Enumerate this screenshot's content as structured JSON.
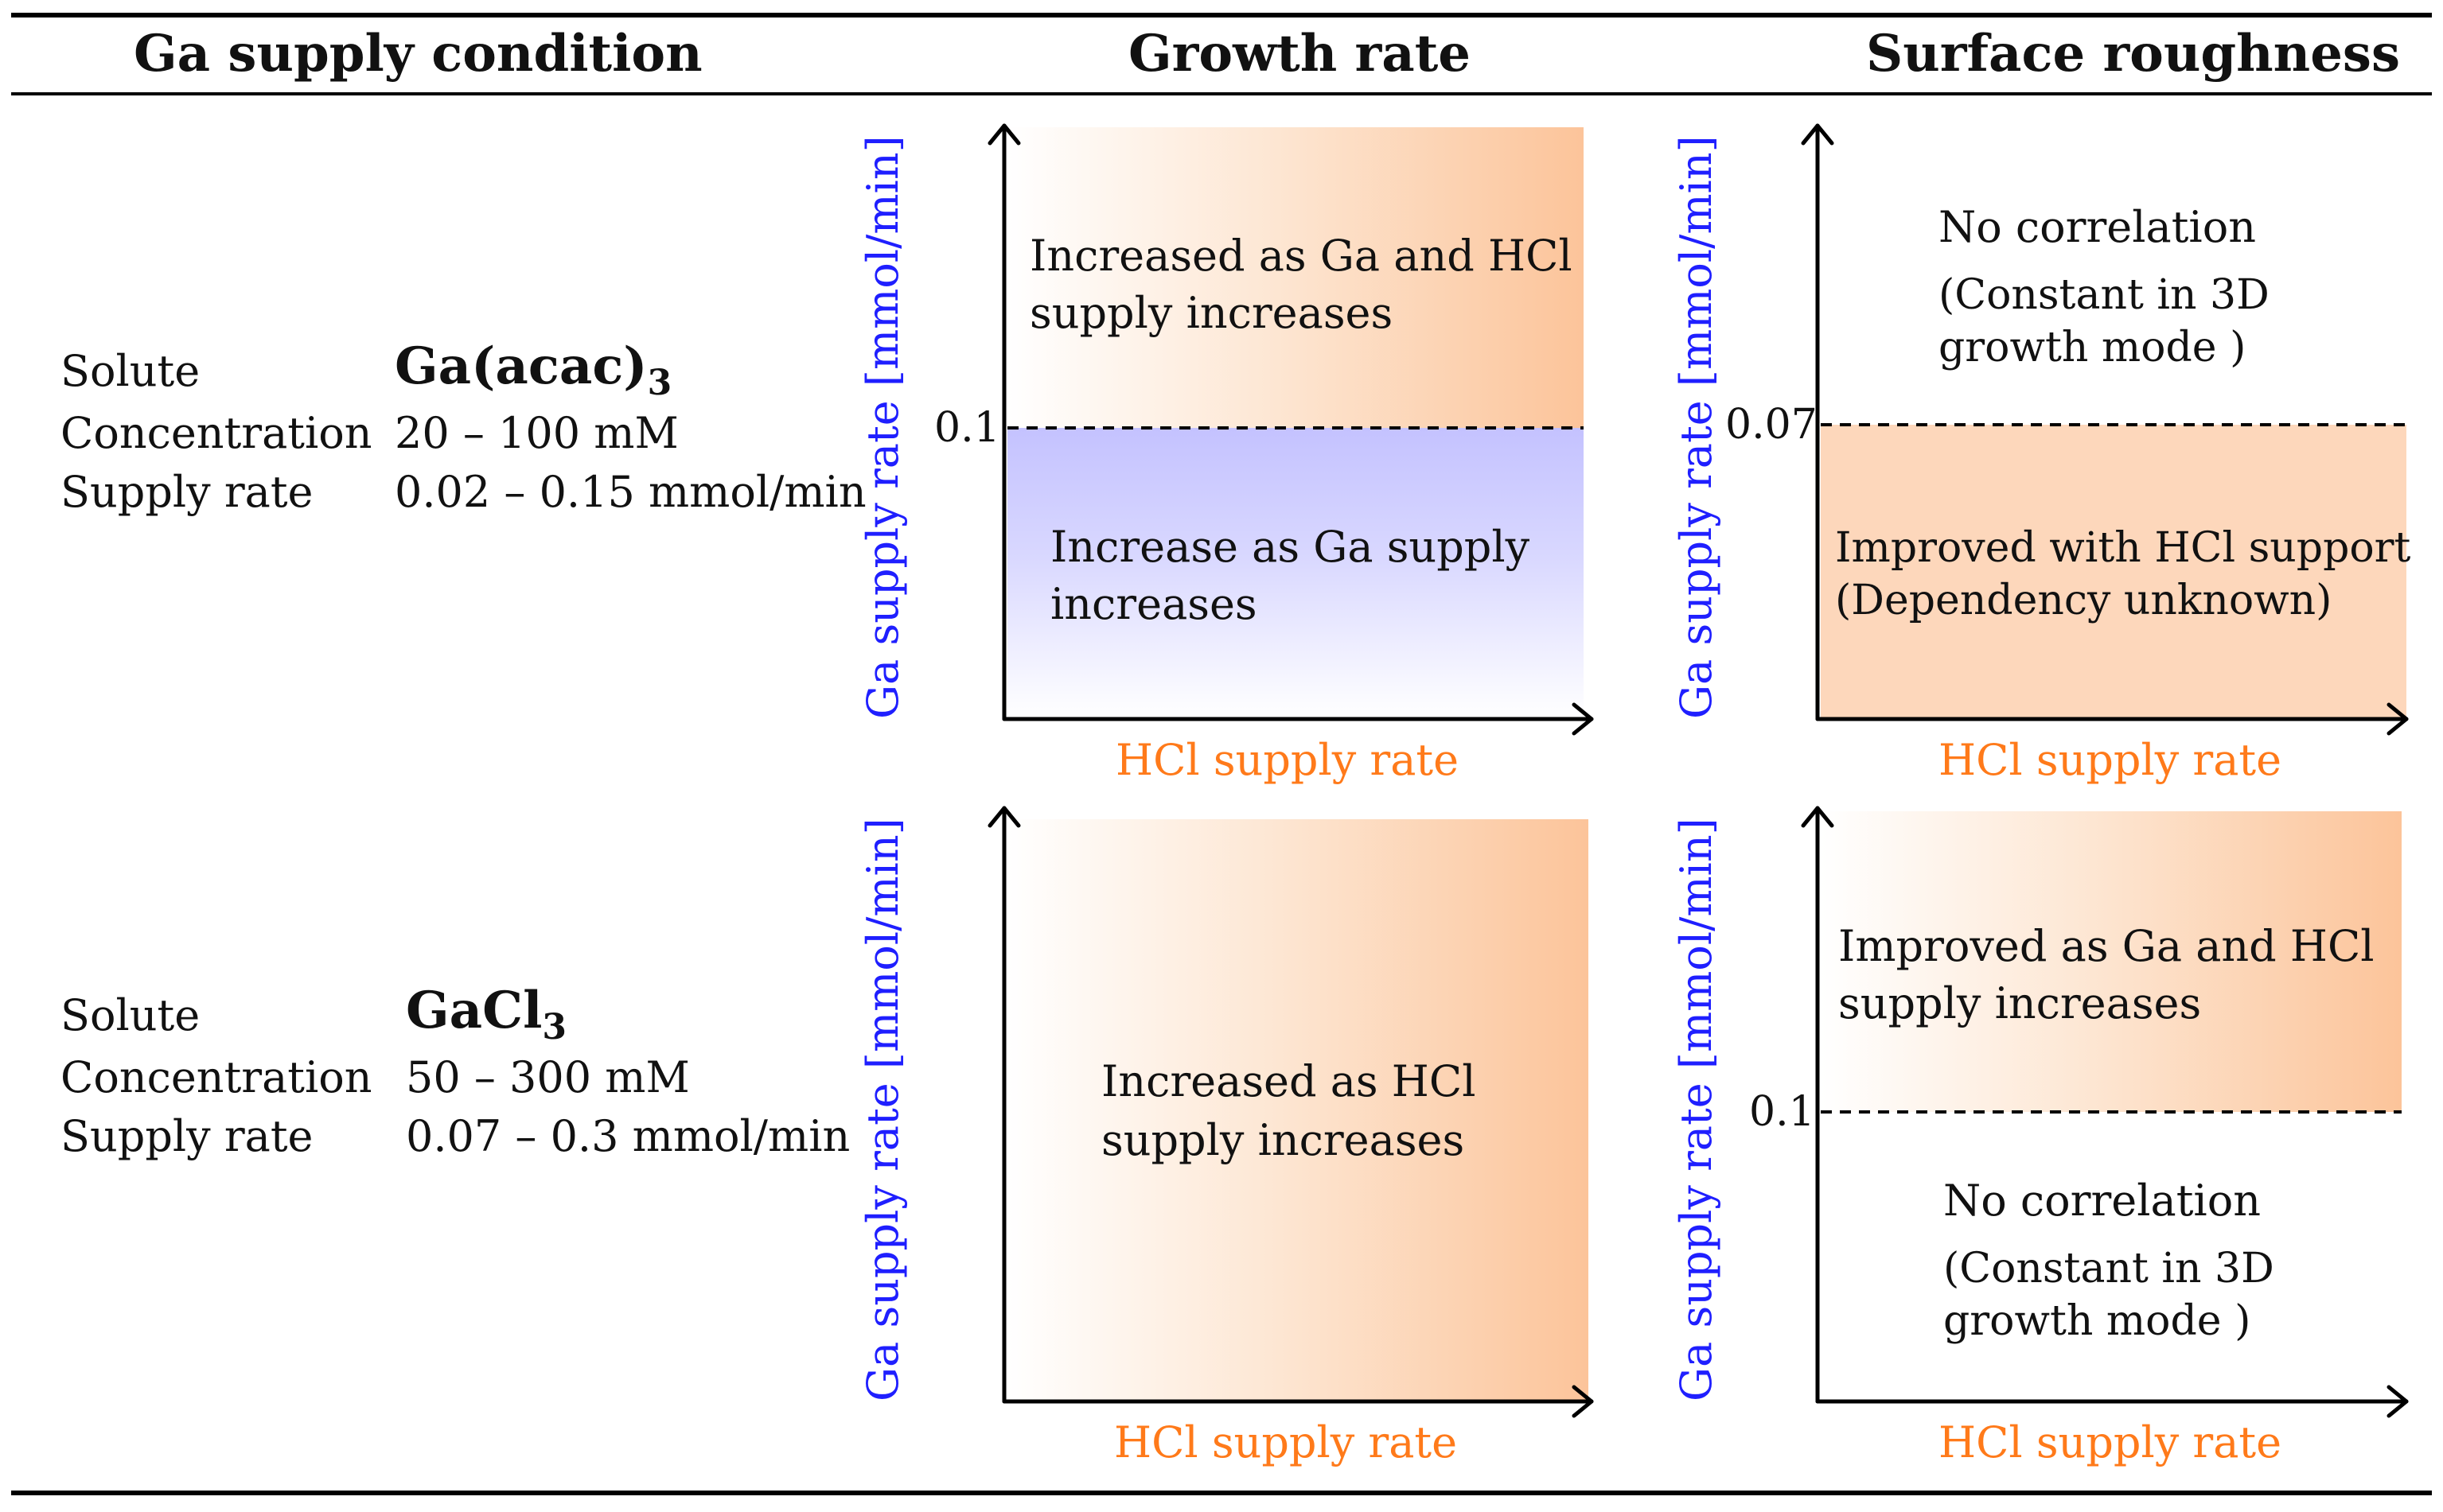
{
  "headers": {
    "ga_supply": "Ga supply condition",
    "growth_rate": "Growth rate",
    "surface_roughness": "Surface roughness"
  },
  "rows": [
    {
      "solute_label": "Solute",
      "solute_base": "Ga(acac)",
      "solute_sub": "3",
      "concentration_label": "Concentration",
      "concentration_value": "20 – 100 mM",
      "supply_label": "Supply rate",
      "supply_value": "0.02 – 0.15 mmol/min",
      "growth": {
        "y_axis_label": "Ga supply rate [mmol/min]",
        "x_axis_label": "HCl supply rate",
        "threshold_label": "0.1",
        "upper_text_1": "Increased as Ga and HCl",
        "upper_text_2": "supply increases",
        "lower_text_1": "Increase as Ga supply",
        "lower_text_2": "increases"
      },
      "roughness": {
        "y_axis_label": "Ga supply rate [mmol/min]",
        "x_axis_label": "HCl supply rate",
        "threshold_label": "0.07",
        "upper_text_1": "No correlation",
        "upper_text_2": "(Constant  in  3D",
        "upper_text_3": "growth mode )",
        "lower_text_1": "Improved with HCl support",
        "lower_text_2": "(Dependency unknown)"
      }
    },
    {
      "solute_label": "Solute",
      "solute_base": "GaCl",
      "solute_sub": "3",
      "concentration_label": "Concentration",
      "concentration_value": "50 – 300 mM",
      "supply_label": "Supply rate",
      "supply_value": "0.07 – 0.3 mmol/min",
      "growth": {
        "y_axis_label": "Ga supply rate [mmol/min]",
        "x_axis_label": "HCl supply rate",
        "text_1": "Increased  as  HCl",
        "text_2": "supply increases"
      },
      "roughness": {
        "y_axis_label": "Ga supply rate [mmol/min]",
        "x_axis_label": "HCl supply rate",
        "threshold_label": "0.1",
        "upper_text_1": "Improved as Ga and HCl",
        "upper_text_2": "supply increases",
        "lower_text_1": "No correlation",
        "lower_text_2": "(Constant  in  3D",
        "lower_text_3": "growth mode )"
      }
    }
  ],
  "colors": {
    "y_axis_label": "#1f1fff",
    "x_axis_label": "#ff7a1a",
    "orange_fill": "#fcc49a",
    "blue_fill": "#c4c2ff"
  }
}
